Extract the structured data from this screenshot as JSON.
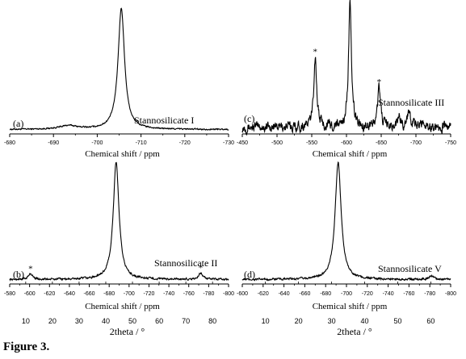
{
  "figure": {
    "caption": "Figure 3."
  },
  "chart_data": [
    {
      "type": "line",
      "panel_label": "(a)",
      "annotation": "Stannosilicate I",
      "xlabel": "Chemical shift / ppm",
      "xlim": [
        -680,
        -730
      ],
      "x_ticks": [
        -680,
        -690,
        -700,
        -710,
        -720,
        -730
      ],
      "x_tick_labels": [
        "-680",
        "-690",
        "-700",
        "-710",
        "-720",
        "-730"
      ],
      "peaks": [
        {
          "x": -705.5,
          "height": 1.0,
          "width": 0.9
        },
        {
          "x": -693.5,
          "height": 0.03,
          "width": 2.5
        }
      ],
      "starred_peaks": [],
      "baseline": 0.01,
      "noise": 0.004
    },
    {
      "type": "line",
      "panel_label": "(c)",
      "annotation": "Stannosilicate III",
      "xlabel": "Chemical shift / ppm",
      "xlim": [
        -450,
        -750
      ],
      "x_ticks": [
        -450,
        -500,
        -550,
        -600,
        -650,
        -700,
        -750
      ],
      "x_tick_labels": [
        "-450",
        "-500",
        "-550",
        "-600",
        "-650",
        "-700",
        "-750"
      ],
      "peaks": [
        {
          "x": -555,
          "height": 0.58,
          "width": 2.5
        },
        {
          "x": -605,
          "height": 1.0,
          "width": 2.5
        },
        {
          "x": -647,
          "height": 0.33,
          "width": 2.5
        },
        {
          "x": -676,
          "height": 0.07,
          "width": 3
        },
        {
          "x": -690,
          "height": 0.14,
          "width": 2.5
        },
        {
          "x": -710,
          "height": 0.05,
          "width": 3
        }
      ],
      "starred_peaks": [
        -555,
        -647
      ],
      "baseline": 0.03,
      "noise": 0.03
    },
    {
      "type": "line",
      "panel_label": "(b)",
      "annotation": "Stannosilicate II",
      "xlabel": "Chemical shift / ppm",
      "xlim": [
        -580,
        -800
      ],
      "x_ticks": [
        -580,
        -600,
        -620,
        -640,
        -660,
        -680,
        -700,
        -720,
        -740,
        -760,
        -780,
        -800
      ],
      "x_tick_labels": [
        "-580",
        "-600",
        "-620",
        "-640",
        "-660",
        "-680",
        "-700",
        "-720",
        "-740",
        "-760",
        "-780",
        "-800"
      ],
      "top_axis_ticks": [
        10,
        20,
        30,
        40,
        50,
        60,
        70,
        80
      ],
      "secondary_axis": {
        "label": "2theta / °",
        "lim": [
          4,
          86
        ],
        "ticks": [
          10,
          20,
          30,
          40,
          50,
          60,
          70,
          80
        ],
        "tick_labels": [
          "10",
          "20",
          "30",
          "40",
          "50",
          "60",
          "70",
          "80"
        ]
      },
      "peaks": [
        {
          "x": -687,
          "height": 1.0,
          "width": 3.5
        },
        {
          "x": -601,
          "height": 0.05,
          "width": 2.5
        },
        {
          "x": -772,
          "height": 0.055,
          "width": 2.5
        }
      ],
      "starred_peaks": [
        -601,
        -772
      ],
      "baseline": 0.01,
      "noise": 0.006
    },
    {
      "type": "line",
      "panel_label": "(d)",
      "annotation": "Stannosilicate V",
      "xlabel": "Chemical shift / ppm",
      "xlim": [
        -600,
        -800
      ],
      "x_ticks": [
        -600,
        -620,
        -640,
        -660,
        -680,
        -700,
        -720,
        -740,
        -760,
        -780,
        -800
      ],
      "x_tick_labels": [
        "-600",
        "-620",
        "-640",
        "-660",
        "-680",
        "-700",
        "-720",
        "-740",
        "-760",
        "-780",
        "-800"
      ],
      "top_axis_ticks": [
        10,
        20,
        30,
        40,
        50,
        60
      ],
      "secondary_axis": {
        "label": "2theta / °",
        "lim": [
          3,
          66
        ],
        "ticks": [
          10,
          20,
          30,
          40,
          50,
          60
        ],
        "tick_labels": [
          "10",
          "20",
          "30",
          "40",
          "50",
          "60"
        ]
      },
      "peaks": [
        {
          "x": -692,
          "height": 1.0,
          "width": 3.5
        },
        {
          "x": -782,
          "height": 0.03,
          "width": 3
        }
      ],
      "starred_peaks": [],
      "baseline": 0.01,
      "noise": 0.006
    }
  ]
}
